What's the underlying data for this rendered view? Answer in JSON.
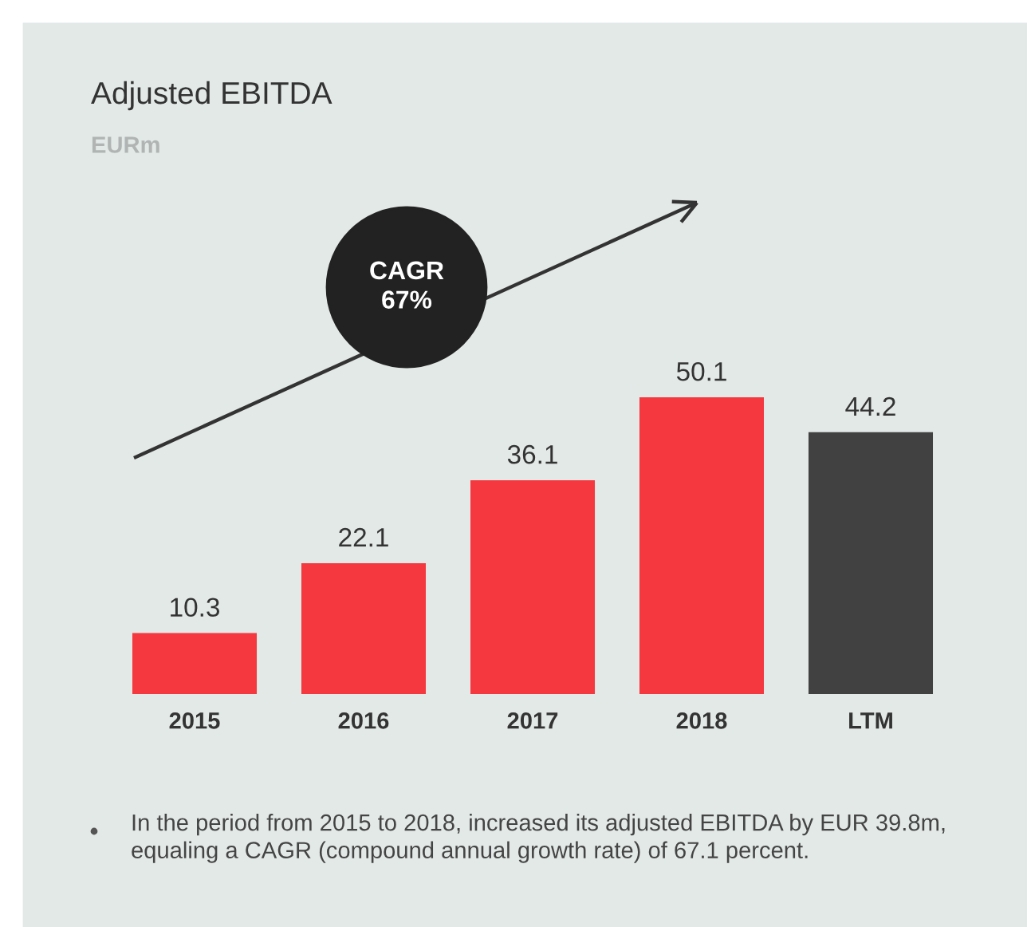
{
  "chart_data": {
    "type": "bar",
    "title": "Adjusted EBITDA",
    "subtitle": "EURm",
    "categories": [
      "2015",
      "2016",
      "2017",
      "2018",
      "LTM"
    ],
    "values": [
      10.3,
      22.1,
      36.1,
      50.1,
      44.2
    ],
    "colors": [
      "#f5383f",
      "#f5383f",
      "#f5383f",
      "#f5383f",
      "#414141"
    ],
    "data_labels": true,
    "grid": false,
    "legend": false,
    "annotations": [
      "CAGR\n67%",
      "In the period from 2015 to 2018, increased its adjusted EBITDA by EUR 39.8m, equaling a CAGR (compound annual growth rate) of 67.1 percent."
    ]
  }
}
